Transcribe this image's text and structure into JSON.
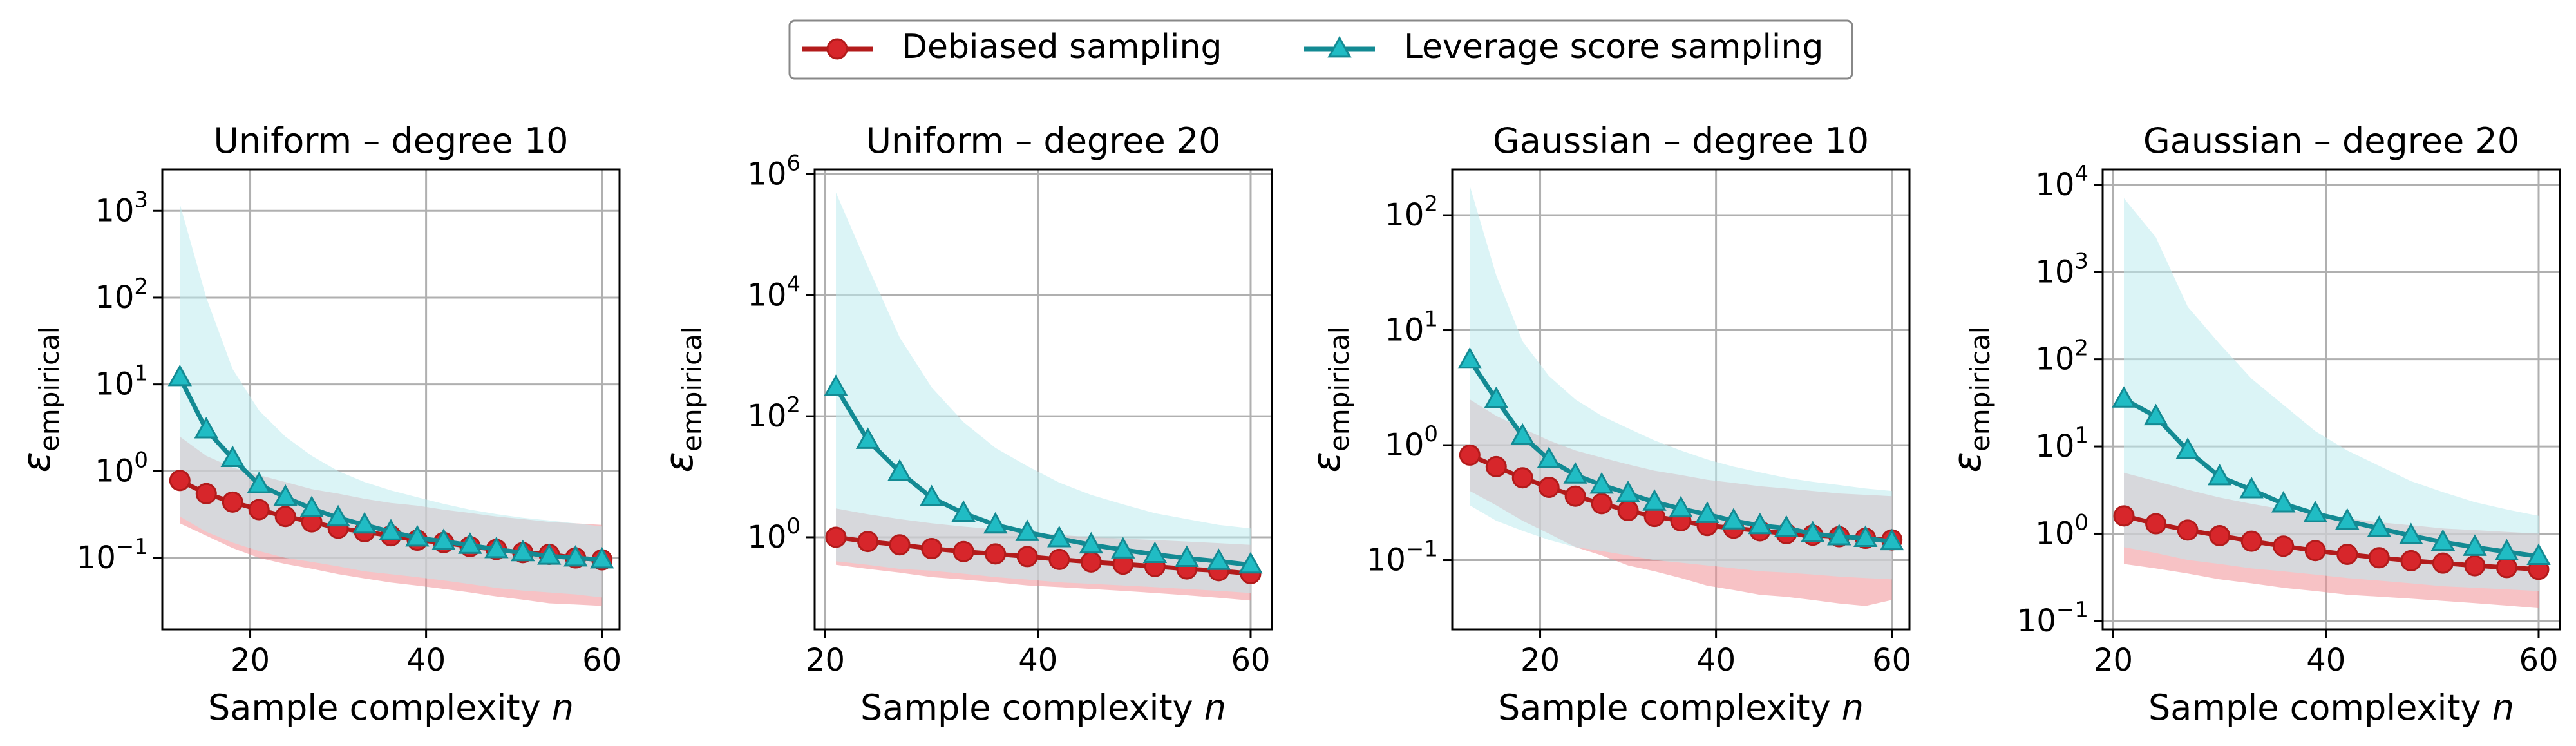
{
  "legend": {
    "location": "top-center",
    "entries": [
      {
        "label": "Debiased sampling",
        "color": "#b31b1b",
        "marker": "circle"
      },
      {
        "label": "Leverage score sampling",
        "color": "#138a93",
        "marker": "triangle"
      }
    ]
  },
  "colors": {
    "debiased_line": "#b31b1b",
    "debiased_marker": "#d7262b",
    "debiased_band": "#f08f95",
    "leverage_line": "#138a93",
    "leverage_marker": "#20bcc4",
    "leverage_band": "#bdebee",
    "grid": "#b0b0b0"
  },
  "chart_data": [
    {
      "type": "line",
      "title": "Uniform – degree 10",
      "xlabel": "Sample complexity n",
      "ylabel": "ε empirical",
      "yscale": "log",
      "grid": true,
      "xlim": [
        10,
        62
      ],
      "ylim": [
        0.015,
        3000
      ],
      "xticks": [
        20,
        40,
        60
      ],
      "yticks": [
        {
          "v": 0.1,
          "e": "−1"
        },
        {
          "v": 1,
          "e": "0"
        },
        {
          "v": 10,
          "e": "1"
        },
        {
          "v": 100,
          "e": "2"
        },
        {
          "v": 1000,
          "e": "3"
        }
      ],
      "x": [
        12,
        15,
        18,
        21,
        24,
        27,
        30,
        33,
        36,
        39,
        42,
        45,
        48,
        51,
        54,
        57,
        60
      ],
      "series": [
        {
          "name": "Debiased sampling",
          "values": [
            0.78,
            0.55,
            0.44,
            0.36,
            0.3,
            0.26,
            0.22,
            0.2,
            0.18,
            0.16,
            0.15,
            0.135,
            0.125,
            0.115,
            0.11,
            0.1,
            0.095
          ],
          "band_low": [
            0.25,
            0.18,
            0.13,
            0.1,
            0.085,
            0.075,
            0.065,
            0.058,
            0.052,
            0.048,
            0.044,
            0.04,
            0.036,
            0.033,
            0.03,
            0.029,
            0.028
          ],
          "band_high": [
            2.5,
            1.5,
            1.1,
            0.9,
            0.75,
            0.62,
            0.55,
            0.48,
            0.43,
            0.4,
            0.36,
            0.33,
            0.3,
            0.28,
            0.26,
            0.25,
            0.24
          ]
        },
        {
          "name": "Leverage score sampling",
          "values": [
            12,
            3.0,
            1.4,
            0.7,
            0.5,
            0.37,
            0.29,
            0.24,
            0.2,
            0.17,
            0.155,
            0.14,
            0.125,
            0.115,
            0.105,
            0.1,
            0.095
          ],
          "band_low": [
            0.3,
            0.2,
            0.15,
            0.12,
            0.1,
            0.09,
            0.08,
            0.07,
            0.065,
            0.06,
            0.055,
            0.05,
            0.045,
            0.042,
            0.04,
            0.038,
            0.035
          ],
          "band_high": [
            1200,
            100,
            15,
            5,
            2.5,
            1.5,
            1.0,
            0.75,
            0.6,
            0.5,
            0.42,
            0.36,
            0.32,
            0.29,
            0.27,
            0.25,
            0.23
          ]
        }
      ]
    },
    {
      "type": "line",
      "title": "Uniform – degree 20",
      "xlabel": "Sample complexity n",
      "ylabel": "ε empirical",
      "yscale": "log",
      "grid": true,
      "xlim": [
        19,
        62
      ],
      "ylim": [
        0.03,
        1200000
      ],
      "xticks": [
        20,
        40,
        60
      ],
      "yticks": [
        {
          "v": 1,
          "e": "0"
        },
        {
          "v": 100,
          "e": "2"
        },
        {
          "v": 10000,
          "e": "4"
        },
        {
          "v": 1000000,
          "e": "6"
        }
      ],
      "x": [
        21,
        24,
        27,
        30,
        33,
        36,
        39,
        42,
        45,
        48,
        51,
        54,
        57,
        60
      ],
      "series": [
        {
          "name": "Debiased sampling",
          "values": [
            1.0,
            0.85,
            0.75,
            0.65,
            0.58,
            0.53,
            0.48,
            0.43,
            0.39,
            0.36,
            0.33,
            0.3,
            0.28,
            0.25
          ],
          "band_low": [
            0.35,
            0.3,
            0.26,
            0.22,
            0.2,
            0.18,
            0.16,
            0.15,
            0.14,
            0.13,
            0.12,
            0.11,
            0.1,
            0.09
          ],
          "band_high": [
            3.0,
            2.4,
            2.0,
            1.7,
            1.5,
            1.35,
            1.2,
            1.1,
            1.0,
            0.95,
            0.9,
            0.85,
            0.8,
            0.75
          ]
        },
        {
          "name": "Leverage score sampling",
          "values": [
            300,
            40,
            12,
            4.5,
            2.5,
            1.6,
            1.2,
            0.95,
            0.75,
            0.62,
            0.52,
            0.45,
            0.4,
            0.35
          ],
          "band_low": [
            0.4,
            0.35,
            0.3,
            0.28,
            0.25,
            0.22,
            0.2,
            0.18,
            0.17,
            0.16,
            0.15,
            0.14,
            0.13,
            0.12
          ],
          "band_high": [
            500000,
            30000,
            2000,
            300,
            80,
            30,
            15,
            8,
            5,
            3.5,
            2.5,
            2.0,
            1.6,
            1.4
          ]
        }
      ]
    },
    {
      "type": "line",
      "title": "Gaussian – degree 10",
      "xlabel": "Sample complexity n",
      "ylabel": "ε empirical",
      "yscale": "log",
      "grid": true,
      "xlim": [
        10,
        62
      ],
      "ylim": [
        0.025,
        250
      ],
      "xticks": [
        20,
        40,
        60
      ],
      "yticks": [
        {
          "v": 0.1,
          "e": "−1"
        },
        {
          "v": 1,
          "e": "0"
        },
        {
          "v": 10,
          "e": "1"
        },
        {
          "v": 100,
          "e": "2"
        }
      ],
      "x": [
        12,
        15,
        18,
        21,
        24,
        27,
        30,
        33,
        36,
        39,
        42,
        45,
        48,
        51,
        54,
        57,
        60
      ],
      "series": [
        {
          "name": "Debiased sampling",
          "values": [
            0.82,
            0.65,
            0.52,
            0.43,
            0.36,
            0.31,
            0.27,
            0.24,
            0.22,
            0.2,
            0.19,
            0.18,
            0.17,
            0.165,
            0.16,
            0.155,
            0.15
          ],
          "band_low": [
            0.4,
            0.3,
            0.22,
            0.17,
            0.13,
            0.11,
            0.09,
            0.08,
            0.07,
            0.06,
            0.055,
            0.05,
            0.048,
            0.045,
            0.042,
            0.04,
            0.045
          ],
          "band_high": [
            2.5,
            1.8,
            1.4,
            1.1,
            0.9,
            0.78,
            0.68,
            0.6,
            0.55,
            0.5,
            0.47,
            0.44,
            0.42,
            0.4,
            0.38,
            0.37,
            0.36
          ]
        },
        {
          "name": "Leverage score sampling",
          "values": [
            5.5,
            2.5,
            1.2,
            0.75,
            0.55,
            0.45,
            0.38,
            0.32,
            0.28,
            0.25,
            0.22,
            0.2,
            0.19,
            0.17,
            0.16,
            0.155,
            0.145
          ],
          "band_low": [
            0.3,
            0.22,
            0.18,
            0.15,
            0.13,
            0.12,
            0.11,
            0.1,
            0.095,
            0.09,
            0.085,
            0.08,
            0.078,
            0.075,
            0.072,
            0.07,
            0.068
          ],
          "band_high": [
            180,
            30,
            8,
            4,
            2.5,
            1.8,
            1.4,
            1.1,
            0.9,
            0.75,
            0.65,
            0.58,
            0.52,
            0.48,
            0.45,
            0.42,
            0.4
          ]
        }
      ]
    },
    {
      "type": "line",
      "title": "Gaussian – degree 20",
      "xlabel": "Sample complexity n",
      "ylabel": "ε empirical",
      "yscale": "log",
      "grid": true,
      "xlim": [
        19,
        62
      ],
      "ylim": [
        0.08,
        15000
      ],
      "xticks": [
        20,
        40,
        60
      ],
      "yticks": [
        {
          "v": 0.1,
          "e": "−1"
        },
        {
          "v": 1,
          "e": "0"
        },
        {
          "v": 10,
          "e": "1"
        },
        {
          "v": 100,
          "e": "2"
        },
        {
          "v": 1000,
          "e": "3"
        },
        {
          "v": 10000,
          "e": "4"
        }
      ],
      "x": [
        21,
        24,
        27,
        30,
        33,
        36,
        39,
        42,
        45,
        48,
        51,
        54,
        57,
        60
      ],
      "series": [
        {
          "name": "Debiased sampling",
          "values": [
            1.6,
            1.3,
            1.1,
            0.95,
            0.82,
            0.72,
            0.64,
            0.58,
            0.53,
            0.49,
            0.46,
            0.43,
            0.41,
            0.39
          ],
          "band_low": [
            0.45,
            0.4,
            0.35,
            0.3,
            0.27,
            0.24,
            0.22,
            0.2,
            0.19,
            0.18,
            0.17,
            0.16,
            0.15,
            0.14
          ],
          "band_high": [
            5,
            4,
            3.2,
            2.6,
            2.2,
            1.9,
            1.7,
            1.5,
            1.35,
            1.25,
            1.15,
            1.1,
            1.05,
            1.0
          ]
        },
        {
          "name": "Leverage score sampling",
          "values": [
            35,
            22,
            9,
            4.5,
            3.2,
            2.2,
            1.7,
            1.4,
            1.15,
            0.95,
            0.8,
            0.7,
            0.62,
            0.55
          ],
          "band_low": [
            0.7,
            0.6,
            0.5,
            0.45,
            0.4,
            0.37,
            0.34,
            0.31,
            0.29,
            0.27,
            0.25,
            0.24,
            0.23,
            0.22
          ],
          "band_high": [
            7000,
            2500,
            400,
            150,
            60,
            30,
            15,
            9,
            6,
            4,
            3,
            2.3,
            1.9,
            1.6
          ]
        }
      ]
    }
  ]
}
